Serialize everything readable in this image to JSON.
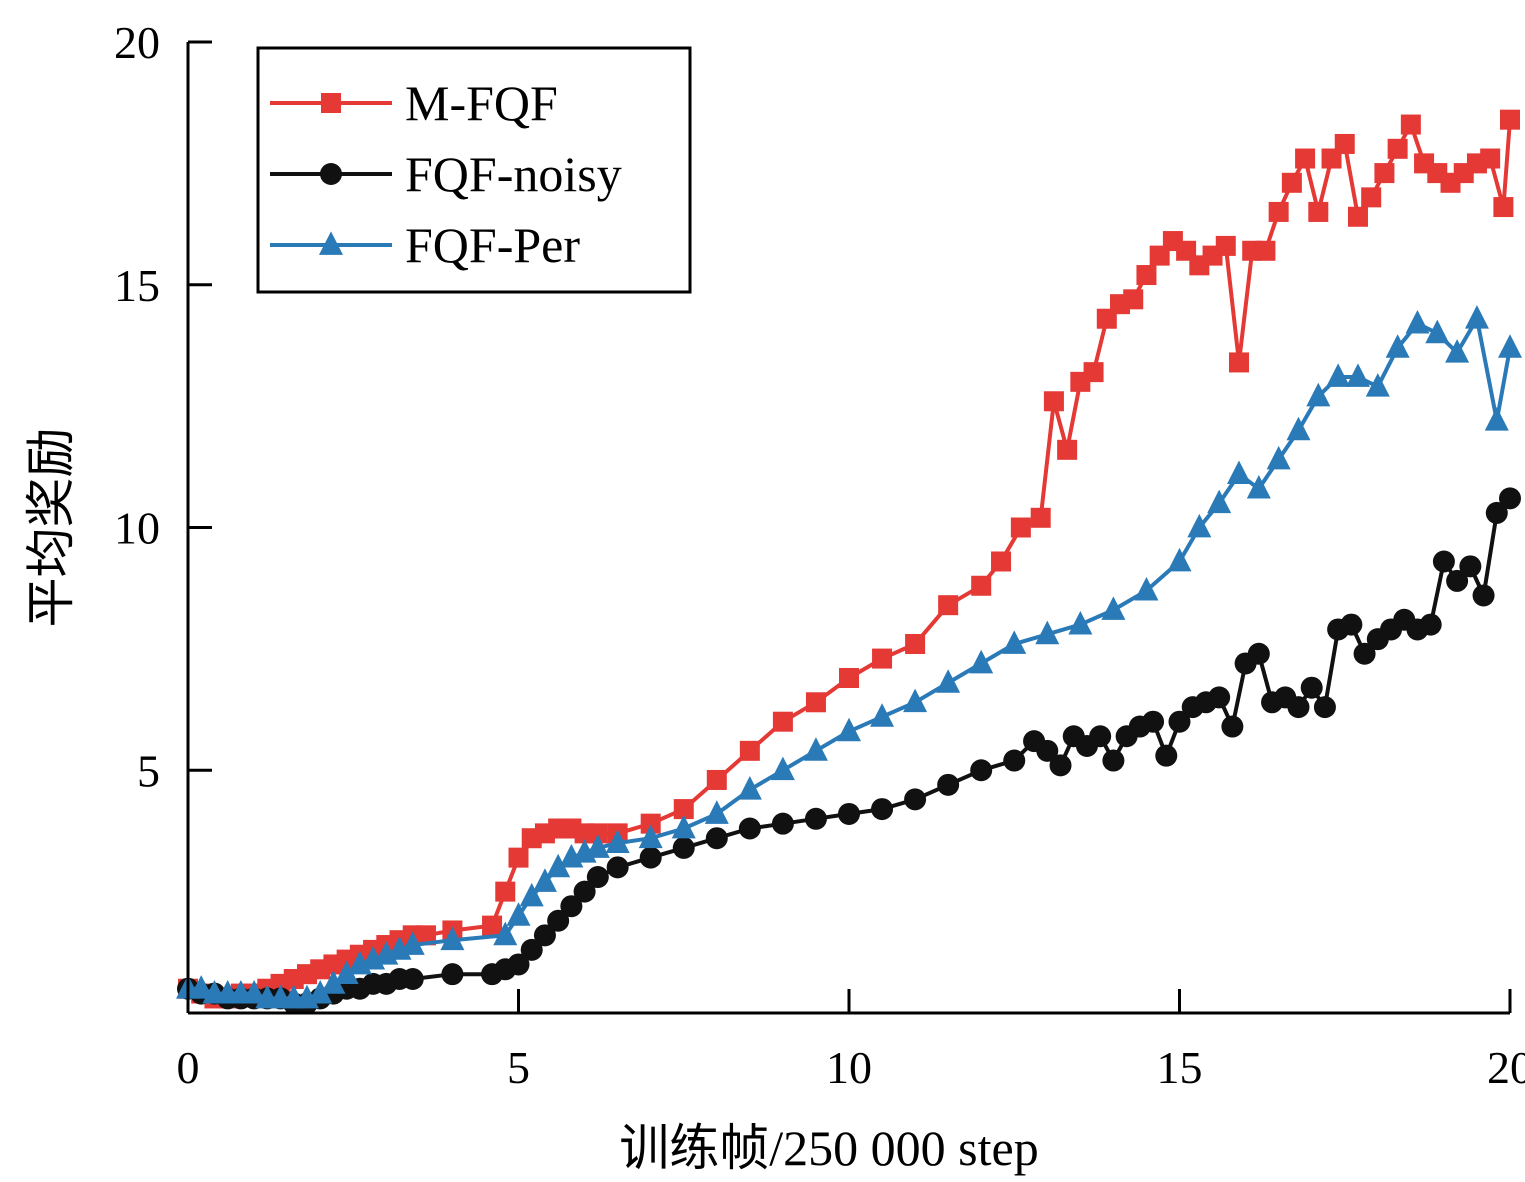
{
  "chart_data": {
    "type": "line",
    "title": "",
    "xlabel": "训练帧/250 000 step",
    "ylabel": "平均奖励",
    "xlim": [
      0,
      20
    ],
    "ylim": [
      0,
      20
    ],
    "xticks": [
      0,
      5,
      10,
      15,
      20
    ],
    "yticks": [
      5,
      10,
      15,
      20
    ],
    "xtick_labels": [
      "0",
      "5",
      "10",
      "15",
      "20"
    ],
    "ytick_labels": [
      "5",
      "10",
      "15",
      "20"
    ],
    "grid": false,
    "legend_position": "top-left",
    "series": [
      {
        "name": "M-FQF",
        "color": "#e53935",
        "marker": "square",
        "x": [
          0.0,
          0.2,
          0.4,
          0.6,
          0.8,
          1.0,
          1.2,
          1.4,
          1.6,
          1.8,
          2.0,
          2.2,
          2.4,
          2.6,
          2.8,
          3.0,
          3.2,
          3.4,
          3.6,
          4.0,
          4.6,
          4.8,
          5.0,
          5.2,
          5.4,
          5.6,
          5.8,
          6.0,
          6.2,
          6.5,
          7.0,
          7.5,
          8.0,
          8.5,
          9.0,
          9.5,
          10.0,
          10.5,
          11.0,
          11.5,
          12.0,
          12.3,
          12.6,
          12.9,
          13.1,
          13.3,
          13.5,
          13.7,
          13.9,
          14.1,
          14.3,
          14.5,
          14.7,
          14.9,
          15.1,
          15.3,
          15.5,
          15.7,
          15.9,
          16.1,
          16.3,
          16.5,
          16.7,
          16.9,
          17.1,
          17.3,
          17.5,
          17.7,
          17.9,
          18.1,
          18.3,
          18.5,
          18.7,
          18.9,
          19.1,
          19.3,
          19.5,
          19.7,
          19.9,
          20.0
        ],
        "y": [
          0.5,
          0.4,
          0.3,
          0.3,
          0.4,
          0.4,
          0.5,
          0.6,
          0.7,
          0.8,
          0.9,
          1.0,
          1.1,
          1.2,
          1.3,
          1.4,
          1.5,
          1.6,
          1.6,
          1.7,
          1.8,
          2.5,
          3.2,
          3.6,
          3.7,
          3.8,
          3.8,
          3.7,
          3.7,
          3.7,
          3.9,
          4.2,
          4.8,
          5.4,
          6.0,
          6.4,
          6.9,
          7.3,
          7.6,
          8.4,
          8.8,
          9.3,
          10.0,
          10.2,
          12.6,
          11.6,
          13.0,
          13.2,
          14.3,
          14.6,
          14.7,
          15.2,
          15.6,
          15.9,
          15.7,
          15.4,
          15.6,
          15.8,
          13.4,
          15.7,
          15.7,
          16.5,
          17.1,
          17.6,
          16.5,
          17.6,
          17.9,
          16.4,
          16.8,
          17.3,
          17.8,
          18.3,
          17.5,
          17.3,
          17.1,
          17.3,
          17.5,
          17.6,
          16.6,
          18.4
        ]
      },
      {
        "name": "FQF-noisy",
        "color": "#111111",
        "marker": "circle",
        "x": [
          0.0,
          0.2,
          0.4,
          0.6,
          0.8,
          1.0,
          1.2,
          1.4,
          1.6,
          1.8,
          2.0,
          2.2,
          2.4,
          2.6,
          2.8,
          3.0,
          3.2,
          3.4,
          4.0,
          4.6,
          4.8,
          5.0,
          5.2,
          5.4,
          5.6,
          5.8,
          6.0,
          6.2,
          6.5,
          7.0,
          7.5,
          8.0,
          8.5,
          9.0,
          9.5,
          10.0,
          10.5,
          11.0,
          11.5,
          12.0,
          12.5,
          12.8,
          13.0,
          13.2,
          13.4,
          13.6,
          13.8,
          14.0,
          14.2,
          14.4,
          14.6,
          14.8,
          15.0,
          15.2,
          15.4,
          15.6,
          15.8,
          16.0,
          16.2,
          16.4,
          16.6,
          16.8,
          17.0,
          17.2,
          17.4,
          17.6,
          17.8,
          18.0,
          18.2,
          18.4,
          18.6,
          18.8,
          19.0,
          19.2,
          19.4,
          19.6,
          19.8,
          20.0
        ],
        "y": [
          0.5,
          0.4,
          0.4,
          0.3,
          0.3,
          0.3,
          0.3,
          0.3,
          0.2,
          0.2,
          0.3,
          0.4,
          0.5,
          0.5,
          0.6,
          0.6,
          0.7,
          0.7,
          0.8,
          0.8,
          0.9,
          1.0,
          1.3,
          1.6,
          1.9,
          2.2,
          2.5,
          2.8,
          3.0,
          3.2,
          3.4,
          3.6,
          3.8,
          3.9,
          4.0,
          4.1,
          4.2,
          4.4,
          4.7,
          5.0,
          5.2,
          5.6,
          5.4,
          5.1,
          5.7,
          5.5,
          5.7,
          5.2,
          5.7,
          5.9,
          6.0,
          5.3,
          6.0,
          6.3,
          6.4,
          6.5,
          5.9,
          7.2,
          7.4,
          6.4,
          6.5,
          6.3,
          6.7,
          6.3,
          7.9,
          8.0,
          7.4,
          7.7,
          7.9,
          8.1,
          7.9,
          8.0,
          9.3,
          8.9,
          9.2,
          8.6,
          10.3,
          10.6
        ]
      },
      {
        "name": "FQF-Per",
        "color": "#2a7ab8",
        "marker": "triangle",
        "x": [
          0.0,
          0.2,
          0.4,
          0.6,
          0.8,
          1.0,
          1.2,
          1.4,
          1.6,
          1.8,
          2.0,
          2.2,
          2.4,
          2.6,
          2.8,
          3.0,
          3.2,
          3.4,
          4.0,
          4.8,
          5.0,
          5.2,
          5.4,
          5.6,
          5.8,
          6.0,
          6.2,
          6.5,
          7.0,
          7.5,
          8.0,
          8.5,
          9.0,
          9.5,
          10.0,
          10.5,
          11.0,
          11.5,
          12.0,
          12.5,
          13.0,
          13.5,
          14.0,
          14.5,
          15.0,
          15.3,
          15.6,
          15.9,
          16.2,
          16.5,
          16.8,
          17.1,
          17.4,
          17.7,
          18.0,
          18.3,
          18.6,
          18.9,
          19.2,
          19.5,
          19.8,
          20.0
        ],
        "y": [
          0.5,
          0.5,
          0.4,
          0.4,
          0.4,
          0.4,
          0.3,
          0.3,
          0.3,
          0.3,
          0.4,
          0.6,
          0.8,
          1.0,
          1.1,
          1.2,
          1.3,
          1.4,
          1.5,
          1.6,
          2.0,
          2.4,
          2.7,
          3.0,
          3.2,
          3.3,
          3.4,
          3.5,
          3.6,
          3.8,
          4.1,
          4.6,
          5.0,
          5.4,
          5.8,
          6.1,
          6.4,
          6.8,
          7.2,
          7.6,
          7.8,
          8.0,
          8.3,
          8.7,
          9.3,
          10.0,
          10.5,
          11.1,
          10.8,
          11.4,
          12.0,
          12.7,
          13.1,
          13.1,
          12.9,
          13.7,
          14.2,
          14.0,
          13.6,
          14.3,
          12.2,
          13.7
        ]
      }
    ]
  }
}
